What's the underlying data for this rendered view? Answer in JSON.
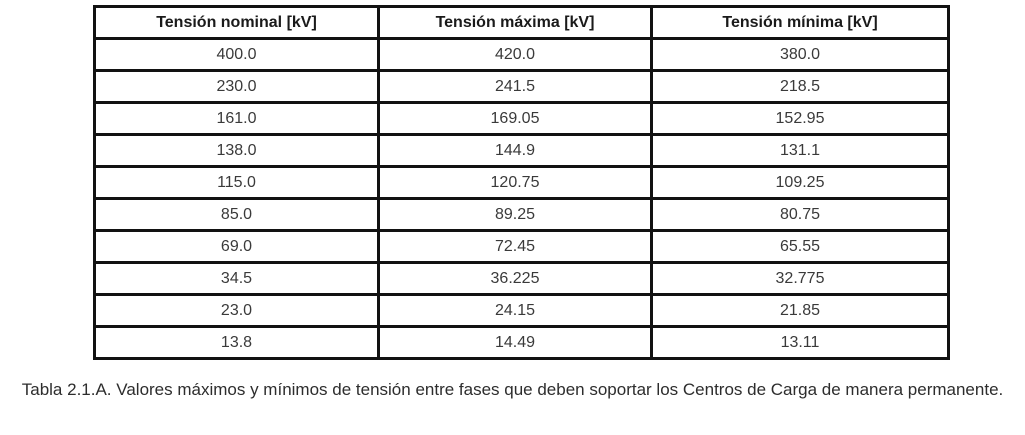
{
  "table": {
    "headers": [
      "Tensión nominal [kV]",
      "Tensión máxima [kV]",
      "Tensión mínima [kV]"
    ],
    "rows": [
      [
        "400.0",
        "420.0",
        "380.0"
      ],
      [
        "230.0",
        "241.5",
        "218.5"
      ],
      [
        "161.0",
        "169.05",
        "152.95"
      ],
      [
        "138.0",
        "144.9",
        "131.1"
      ],
      [
        "115.0",
        "120.75",
        "109.25"
      ],
      [
        "85.0",
        "89.25",
        "80.75"
      ],
      [
        "69.0",
        "72.45",
        "65.55"
      ],
      [
        "34.5",
        "36.225",
        "32.775"
      ],
      [
        "23.0",
        "24.15",
        "21.85"
      ],
      [
        "13.8",
        "14.49",
        "13.11"
      ]
    ]
  },
  "caption": "Tabla 2.1.A. Valores máximos y mínimos de tensión entre fases que deben soportar los Centros de Carga de manera permanente.",
  "colors": {
    "border": "#121212",
    "header_text": "#1a1a1a",
    "cell_text": "#3a3a3a",
    "caption_text": "#2d2d2d"
  }
}
